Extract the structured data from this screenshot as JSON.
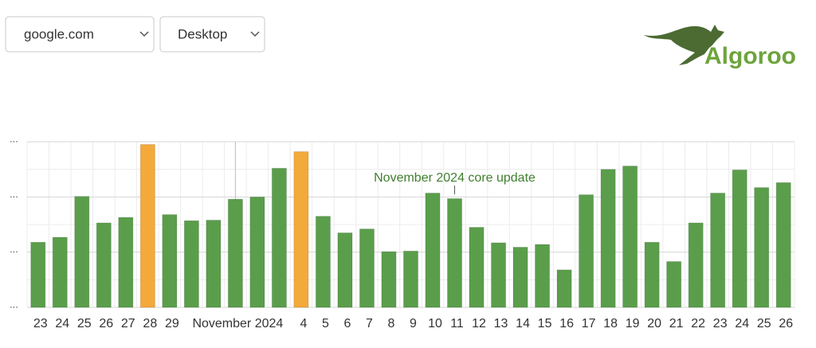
{
  "controls": {
    "site": "google.com",
    "device": "Desktop"
  },
  "logo": {
    "text": "Algoroo"
  },
  "chart_data": {
    "type": "bar",
    "categories": [
      "23",
      "24",
      "25",
      "26",
      "27",
      "28",
      "29",
      null,
      null,
      "November 2024",
      null,
      null,
      "4",
      "5",
      "6",
      "7",
      "8",
      "9",
      "10",
      "11",
      "12",
      "13",
      "14",
      "15",
      "16",
      "17",
      "18",
      "19",
      "20",
      "21",
      "22",
      "23",
      "24",
      "25",
      "26"
    ],
    "values": [
      1.18,
      1.27,
      2.01,
      1.53,
      1.63,
      2.95,
      1.68,
      1.57,
      1.58,
      1.96,
      2.0,
      2.52,
      2.82,
      1.65,
      1.35,
      1.42,
      1.01,
      1.02,
      2.07,
      1.97,
      1.45,
      1.17,
      1.09,
      1.14,
      0.68,
      2.04,
      2.5,
      2.56,
      1.18,
      0.83,
      1.53,
      2.07,
      2.49,
      2.17,
      2.26
    ],
    "colors": [
      "#5a9e4b",
      "#5a9e4b",
      "#5a9e4b",
      "#5a9e4b",
      "#5a9e4b",
      "#f4a93b",
      "#5a9e4b",
      "#5a9e4b",
      "#5a9e4b",
      "#5a9e4b",
      "#5a9e4b",
      "#5a9e4b",
      "#f4a93b",
      "#5a9e4b",
      "#5a9e4b",
      "#5a9e4b",
      "#5a9e4b",
      "#5a9e4b",
      "#5a9e4b",
      "#5a9e4b",
      "#5a9e4b",
      "#5a9e4b",
      "#5a9e4b",
      "#5a9e4b",
      "#5a9e4b",
      "#5a9e4b",
      "#5a9e4b",
      "#5a9e4b",
      "#5a9e4b",
      "#5a9e4b",
      "#5a9e4b",
      "#5a9e4b",
      "#5a9e4b",
      "#5a9e4b",
      "#5a9e4b"
    ],
    "annotation": "November 2024 core update",
    "ylim": [
      0,
      3
    ],
    "yticks": [
      {
        "value": 0,
        "label": "..."
      },
      {
        "value": 1,
        "label": "..."
      },
      {
        "value": 2,
        "label": "..."
      },
      {
        "value": 3,
        "label": "..."
      }
    ],
    "minor_yticks": [
      0.5,
      1.5,
      2.5
    ],
    "grid": true
  }
}
